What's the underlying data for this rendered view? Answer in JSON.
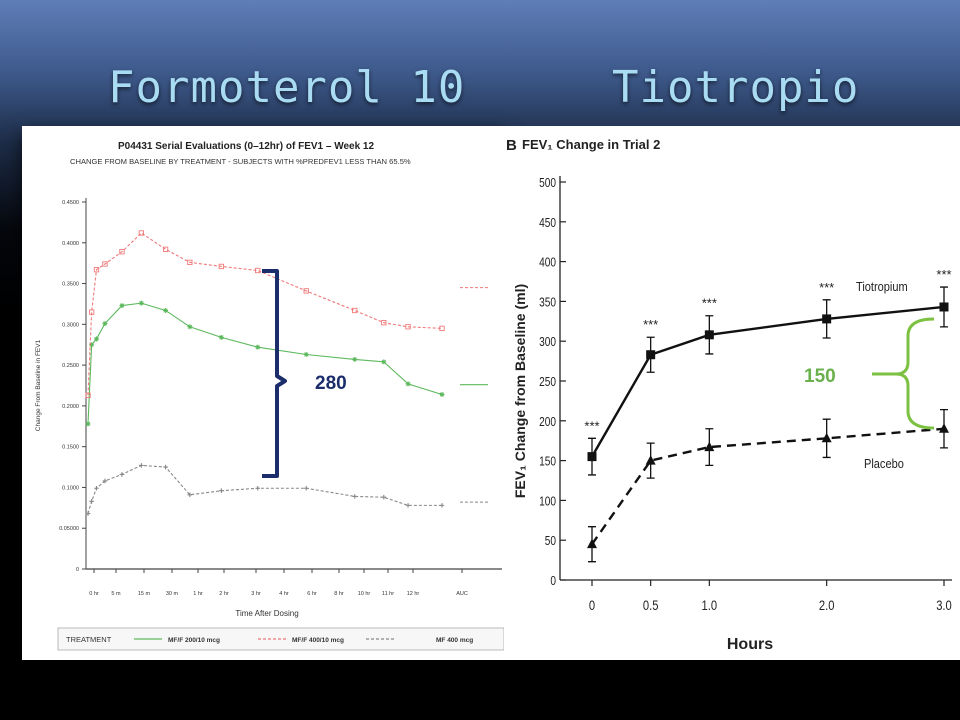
{
  "slide": {
    "title_left": "Formoterol 10",
    "title_right": "Tiotropio"
  },
  "chart_data": [
    {
      "type": "line",
      "title": "P04431  Serial Evaluations (0–12hr) of FEV1 – Week 12",
      "subtitle": "CHANGE FROM BASELINE BY TREATMENT - SUBJECTS WITH %PREDFEV1 LESS THAN 65.5%",
      "xlabel": "Time After Dosing",
      "ylabel": "Change From Baseline in FEV1",
      "ylim": [
        0,
        0.45
      ],
      "ytick_values": [
        0,
        0.05,
        0.1,
        0.15,
        0.2,
        0.25,
        0.3,
        0.35,
        0.4,
        0.45
      ],
      "ytick_labels": [
        "0",
        "0.05000",
        "0.1000",
        "0.1500",
        "0.2000",
        "0.2500",
        "0.3000",
        "0.3500",
        "0.4000",
        "0.4500"
      ],
      "categories": [
        "0 hr",
        "5 m",
        "15 m",
        "30 m",
        "1 hr",
        "2 hr",
        "3 hr",
        "4 hr",
        "6 hr",
        "8 hr",
        "10 hr",
        "11 hr",
        "12 hr",
        "AUC"
      ],
      "grid": false,
      "legend_title": "TREATMENT",
      "legend_position": "bottom",
      "colors": {
        "mf_f_200": "#5cb85c",
        "mf_f_400": "#f07a7a",
        "mf_400": "#888888"
      },
      "series": [
        {
          "name": "MF/F 200/10 mcg",
          "x": [
            0,
            0.15,
            0.35,
            0.7,
            1.4,
            2.2,
            3.2,
            4.2,
            5.5,
            7,
            9,
            11,
            12.2,
            13.2,
            14.6
          ],
          "values": [
            0.178,
            0.275,
            0.282,
            0.301,
            0.323,
            0.326,
            0.317,
            0.297,
            0.284,
            0.272,
            0.263,
            0.257,
            0.254,
            0.227,
            0.214
          ]
        },
        {
          "name": "MF/F 400/10 mcg",
          "x": [
            0,
            0.15,
            0.35,
            0.7,
            1.4,
            2.2,
            3.2,
            4.2,
            5.5,
            7,
            9,
            11,
            12.2,
            13.2,
            14.6
          ],
          "values": [
            0.213,
            0.315,
            0.367,
            0.374,
            0.389,
            0.412,
            0.392,
            0.376,
            0.371,
            0.366,
            0.341,
            0.317,
            0.302,
            0.297,
            0.295
          ]
        },
        {
          "name": "MF 400 mcg",
          "x": [
            0,
            0.15,
            0.35,
            0.7,
            1.4,
            2.2,
            3.2,
            4.2,
            5.5,
            7,
            9,
            11,
            12.2,
            13.2,
            14.6
          ],
          "values": [
            0.068,
            0.083,
            0.099,
            0.108,
            0.116,
            0.127,
            0.125,
            0.091,
            0.096,
            0.099,
            0.099,
            0.089,
            0.088,
            0.078,
            0.078
          ]
        }
      ],
      "annotation": "280"
    },
    {
      "type": "line",
      "title_prefix": "B",
      "title": "FEV₁ Change in Trial 2",
      "xlabel": "Hours",
      "ylabel": "FEV₁ Change from Baseline (ml)",
      "x": [
        0,
        0.5,
        1.0,
        2.0,
        3.0
      ],
      "xtick_labels": [
        "0",
        "0.5",
        "1.0",
        "2.0",
        "3.0"
      ],
      "ylim": [
        0,
        500
      ],
      "ytick_values": [
        0,
        50,
        100,
        150,
        200,
        250,
        300,
        350,
        400,
        450,
        500
      ],
      "grid": false,
      "series": [
        {
          "name": "Tiotropium",
          "values": [
            155,
            283,
            308,
            328,
            343
          ],
          "error": [
            23,
            22,
            24,
            24,
            25
          ],
          "significance": [
            "***",
            "***",
            "***",
            "***",
            "***"
          ]
        },
        {
          "name": "Placebo",
          "values": [
            45,
            150,
            167,
            178,
            190
          ],
          "error": [
            22,
            22,
            23,
            24,
            24
          ]
        }
      ],
      "annotation": "150",
      "annotation_color": "#6ab04c"
    }
  ]
}
